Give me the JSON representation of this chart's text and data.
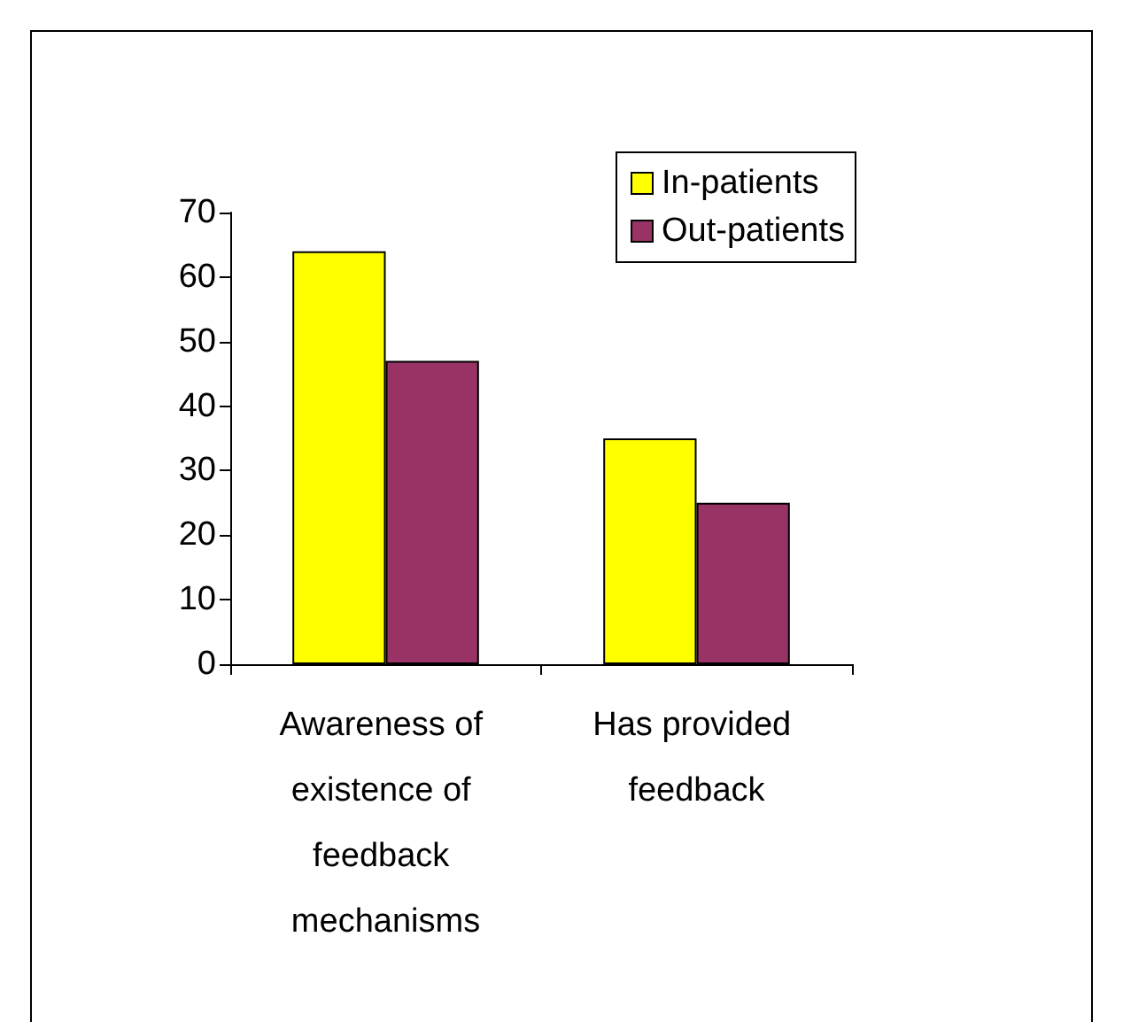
{
  "chart_data": {
    "type": "bar",
    "categories": [
      "Awareness of existence of feedback mechanisms",
      "Has provided feedback"
    ],
    "series": [
      {
        "name": "In-patients",
        "color": "#ffff00",
        "values": [
          64,
          35
        ]
      },
      {
        "name": "Out-patients",
        "color": "#993366",
        "values": [
          47,
          25
        ]
      }
    ],
    "ylim": [
      0,
      70
    ],
    "yticks": [
      0,
      10,
      20,
      30,
      40,
      50,
      60,
      70
    ],
    "grid": false,
    "legend": "top right"
  }
}
